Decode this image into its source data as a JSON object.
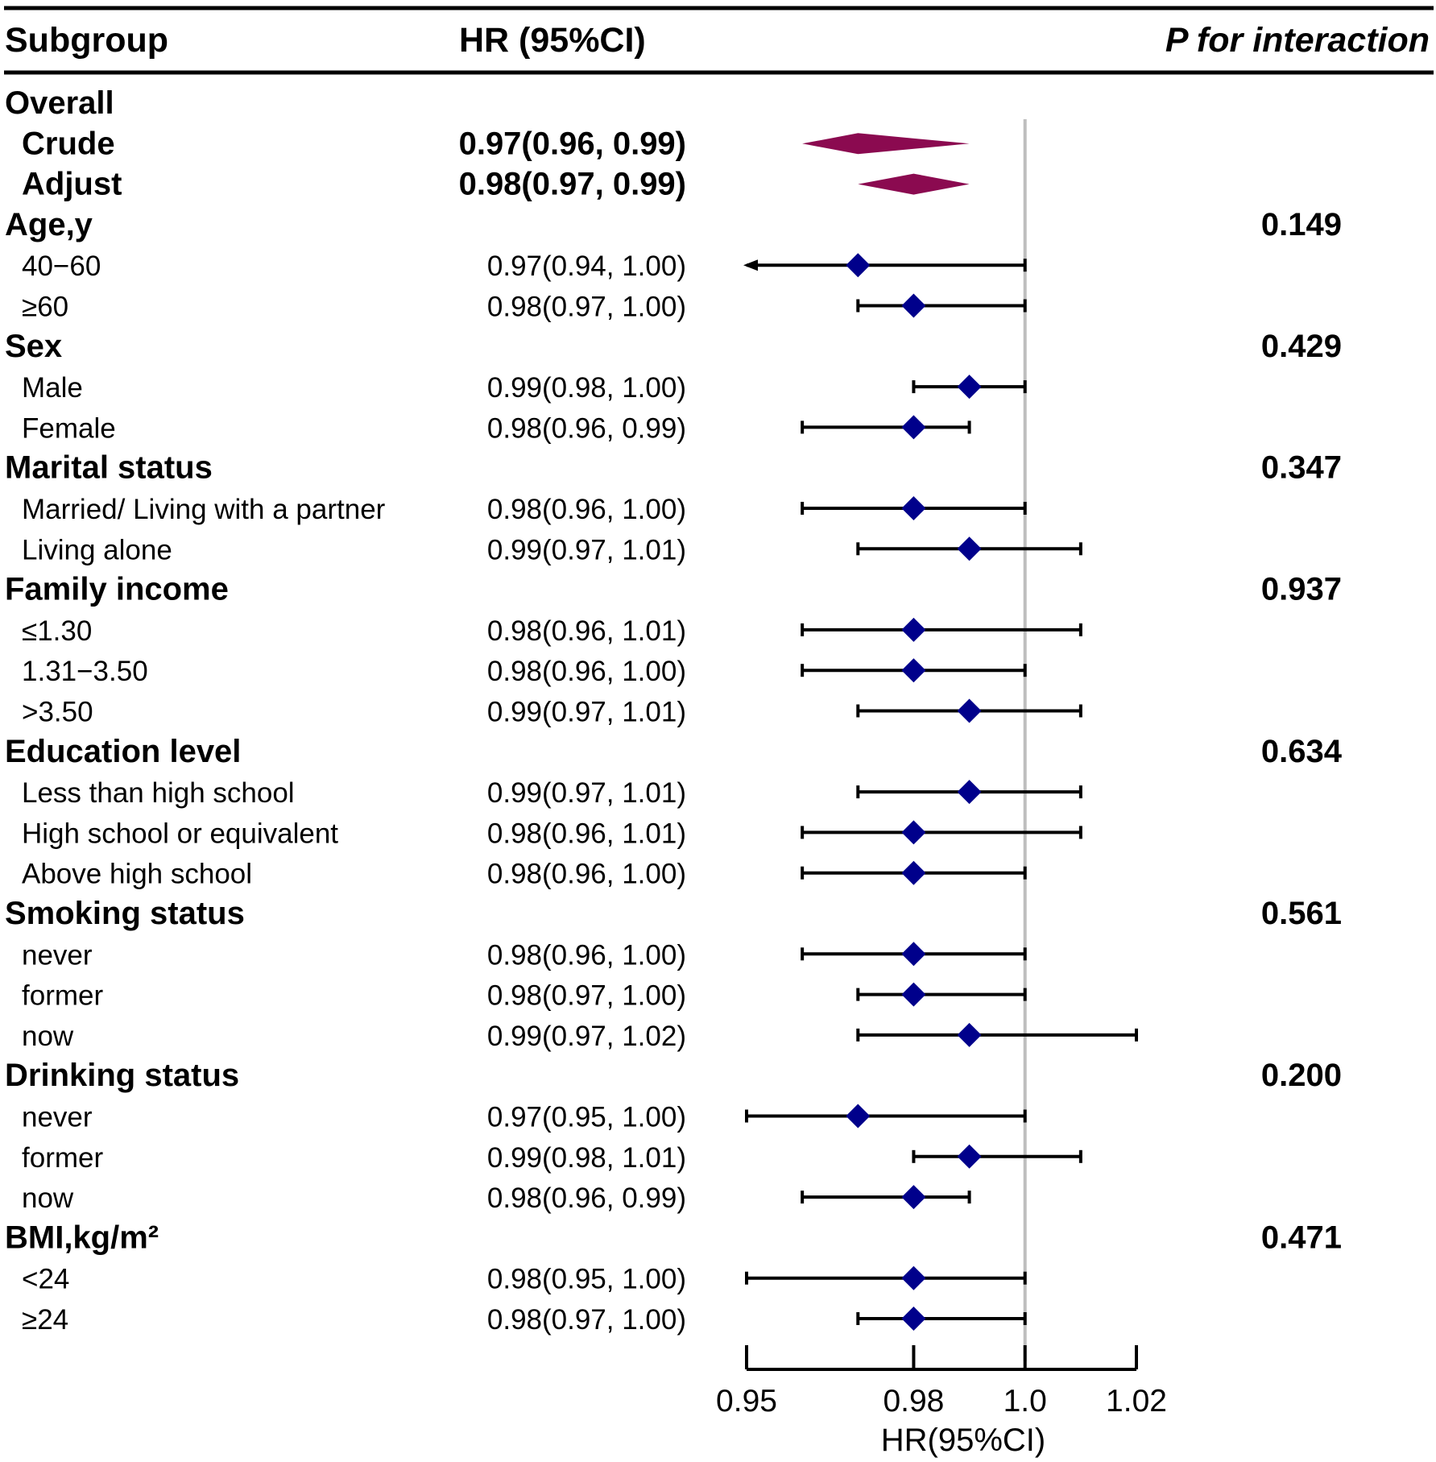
{
  "header": {
    "subgroup_label": "Subgroup",
    "hr_label": "HR (95%CI)",
    "p_label": "P for interaction"
  },
  "rows": [
    {
      "kind": "group",
      "label": "Overall",
      "hr_text": "",
      "p": ""
    },
    {
      "kind": "overall",
      "label": "Crude",
      "hr_text": "0.97(0.96, 0.99)",
      "p": ""
    },
    {
      "kind": "overall",
      "label": "Adjust",
      "hr_text": "0.98(0.97, 0.99)",
      "p": ""
    },
    {
      "kind": "group",
      "label": "Age,y",
      "hr_text": "",
      "p": "0.149"
    },
    {
      "kind": "sub",
      "label": "40−60",
      "hr_text": "0.97(0.94, 1.00)",
      "p": ""
    },
    {
      "kind": "sub",
      "label": "≥60",
      "hr_text": "0.98(0.97, 1.00)",
      "p": ""
    },
    {
      "kind": "group",
      "label": "Sex",
      "hr_text": "",
      "p": "0.429"
    },
    {
      "kind": "sub",
      "label": "Male",
      "hr_text": "0.99(0.98, 1.00)",
      "p": ""
    },
    {
      "kind": "sub",
      "label": "Female",
      "hr_text": "0.98(0.96, 0.99)",
      "p": ""
    },
    {
      "kind": "group",
      "label": "Marital status",
      "hr_text": "",
      "p": "0.347"
    },
    {
      "kind": "sub",
      "label": "Married/ Living with a partner",
      "hr_text": "0.98(0.96, 1.00)",
      "p": ""
    },
    {
      "kind": "sub",
      "label": "Living alone",
      "hr_text": "0.99(0.97, 1.01)",
      "p": ""
    },
    {
      "kind": "group",
      "label": "Family income",
      "hr_text": "",
      "p": "0.937"
    },
    {
      "kind": "sub",
      "label": "≤1.30",
      "hr_text": "0.98(0.96, 1.01)",
      "p": ""
    },
    {
      "kind": "sub",
      "label": "1.31−3.50",
      "hr_text": "0.98(0.96, 1.00)",
      "p": ""
    },
    {
      "kind": "sub",
      "label": ">3.50",
      "hr_text": "0.99(0.97, 1.01)",
      "p": ""
    },
    {
      "kind": "group",
      "label": "Education level",
      "hr_text": "",
      "p": "0.634"
    },
    {
      "kind": "sub",
      "label": "Less than high school",
      "hr_text": "0.99(0.97, 1.01)",
      "p": ""
    },
    {
      "kind": "sub",
      "label": "High school or equivalent",
      "hr_text": "0.98(0.96, 1.01)",
      "p": ""
    },
    {
      "kind": "sub",
      "label": "Above high school",
      "hr_text": "0.98(0.96, 1.00)",
      "p": ""
    },
    {
      "kind": "group",
      "label": "Smoking status",
      "hr_text": "",
      "p": "0.561"
    },
    {
      "kind": "sub",
      "label": "never",
      "hr_text": "0.98(0.96, 1.00)",
      "p": ""
    },
    {
      "kind": "sub",
      "label": "former",
      "hr_text": "0.98(0.97, 1.00)",
      "p": ""
    },
    {
      "kind": "sub",
      "label": "now",
      "hr_text": "0.99(0.97, 1.02)",
      "p": ""
    },
    {
      "kind": "group",
      "label": "Drinking status",
      "hr_text": "",
      "p": "0.200"
    },
    {
      "kind": "sub",
      "label": "never",
      "hr_text": "0.97(0.95, 1.00)",
      "p": ""
    },
    {
      "kind": "sub",
      "label": "former",
      "hr_text": "0.99(0.98, 1.01)",
      "p": ""
    },
    {
      "kind": "sub",
      "label": "now",
      "hr_text": "0.98(0.96, 0.99)",
      "p": ""
    },
    {
      "kind": "group",
      "label": "BMI,kg/m²",
      "hr_text": "",
      "p": "0.471"
    },
    {
      "kind": "sub",
      "label": "<24",
      "hr_text": "0.98(0.95, 1.00)",
      "p": ""
    },
    {
      "kind": "sub",
      "label": "≥24",
      "hr_text": "0.98(0.97, 1.00)",
      "p": ""
    }
  ],
  "chart_data": {
    "type": "forest",
    "xlabel": "HR(95%CI)",
    "xlim": [
      0.95,
      1.02
    ],
    "ticks": [
      0.95,
      0.98,
      1.0,
      1.02
    ],
    "tick_labels": [
      "0.95",
      "0.98",
      "1.0",
      "1.02"
    ],
    "reference_line": 1.0,
    "estimates": [
      {
        "label": "Crude",
        "kind": "summary",
        "hr": 0.97,
        "lo": 0.96,
        "hi": 0.99
      },
      {
        "label": "Adjust",
        "kind": "summary",
        "hr": 0.98,
        "lo": 0.97,
        "hi": 0.99
      },
      {
        "label": "40−60",
        "hr": 0.97,
        "lo": 0.94,
        "hi": 1.0,
        "arrow_left": true
      },
      {
        "label": "≥60",
        "hr": 0.98,
        "lo": 0.97,
        "hi": 1.0
      },
      {
        "label": "Male",
        "hr": 0.99,
        "lo": 0.98,
        "hi": 1.0
      },
      {
        "label": "Female",
        "hr": 0.98,
        "lo": 0.96,
        "hi": 0.99
      },
      {
        "label": "Married/ Living with a partner",
        "hr": 0.98,
        "lo": 0.96,
        "hi": 1.0
      },
      {
        "label": "Living alone",
        "hr": 0.99,
        "lo": 0.97,
        "hi": 1.01
      },
      {
        "label": "≤1.30",
        "hr": 0.98,
        "lo": 0.96,
        "hi": 1.01
      },
      {
        "label": "1.31−3.50",
        "hr": 0.98,
        "lo": 0.96,
        "hi": 1.0
      },
      {
        "label": ">3.50",
        "hr": 0.99,
        "lo": 0.97,
        "hi": 1.01
      },
      {
        "label": "Less than high school",
        "hr": 0.99,
        "lo": 0.97,
        "hi": 1.01
      },
      {
        "label": "High school or equivalent",
        "hr": 0.98,
        "lo": 0.96,
        "hi": 1.01
      },
      {
        "label": "Above high school",
        "hr": 0.98,
        "lo": 0.96,
        "hi": 1.0
      },
      {
        "label": "never (smoking)",
        "hr": 0.98,
        "lo": 0.96,
        "hi": 1.0
      },
      {
        "label": "former (smoking)",
        "hr": 0.98,
        "lo": 0.97,
        "hi": 1.0
      },
      {
        "label": "now (smoking)",
        "hr": 0.99,
        "lo": 0.97,
        "hi": 1.02
      },
      {
        "label": "never (drinking)",
        "hr": 0.97,
        "lo": 0.95,
        "hi": 1.0
      },
      {
        "label": "former (drinking)",
        "hr": 0.99,
        "lo": 0.98,
        "hi": 1.01
      },
      {
        "label": "now (drinking)",
        "hr": 0.98,
        "lo": 0.96,
        "hi": 0.99
      },
      {
        "label": "<24",
        "hr": 0.98,
        "lo": 0.95,
        "hi": 1.0
      },
      {
        "label": "≥24",
        "hr": 0.98,
        "lo": 0.97,
        "hi": 1.0
      }
    ],
    "colors": {
      "point": "#00008B",
      "summary": "#8B0A50",
      "ref_line": "#BEBEBE",
      "ci": "#000000"
    }
  }
}
